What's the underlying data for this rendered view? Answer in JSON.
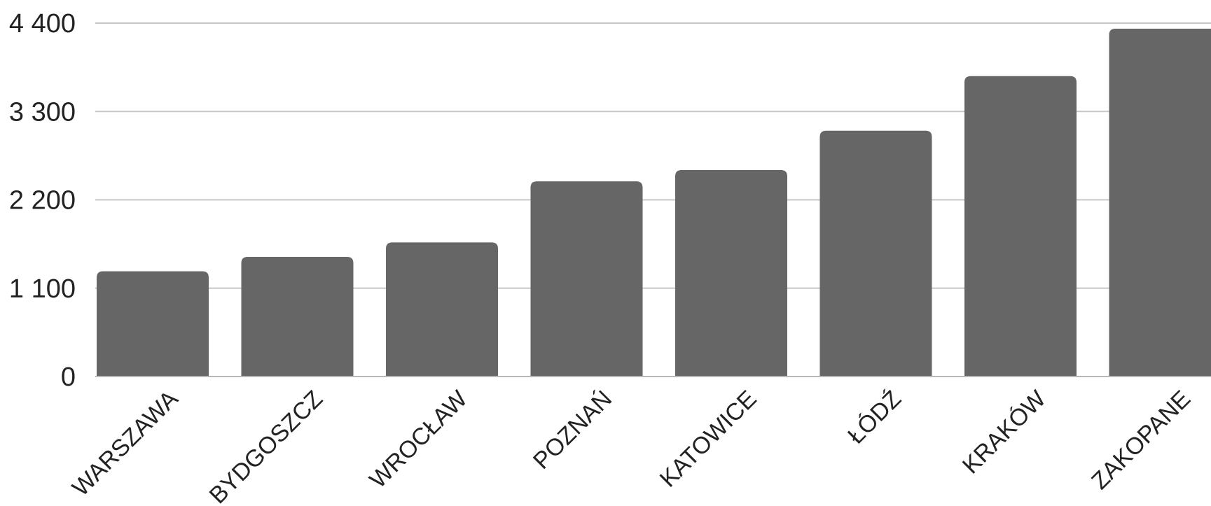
{
  "chart_data": {
    "type": "bar",
    "title": "",
    "xlabel": "",
    "ylabel": "",
    "categories": [
      "WARSZAWA",
      "BYDGOSZCZ",
      "WROCŁAW",
      "POZNAŃ",
      "KATOWICE",
      "ŁÓDŹ",
      "KRAKÓW",
      "ZAKOPANE"
    ],
    "values": [
      1310,
      1490,
      1670,
      2430,
      2570,
      3060,
      3740,
      4330
    ],
    "ylim": [
      0,
      4400
    ],
    "yticks": [
      0,
      1100,
      2200,
      3300,
      4400
    ],
    "ytick_labels": [
      "0",
      "1 100",
      "2 200",
      "3 300",
      "4 400"
    ],
    "grid": true,
    "legend": "none",
    "colors": {
      "bar": "#666666",
      "grid": "#c8c8c8",
      "text": "#222222"
    }
  }
}
